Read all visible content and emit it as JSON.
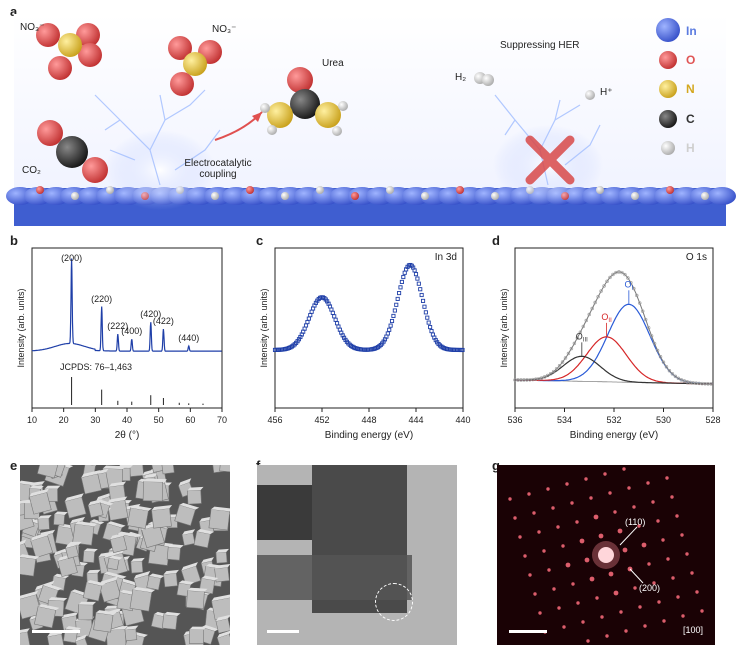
{
  "panel_labels": {
    "a": "a",
    "b": "b",
    "c": "c",
    "d": "d",
    "e": "e",
    "f": "f",
    "g": "g"
  },
  "panel_a": {
    "no3_top_left": "NO₃⁻",
    "no3_top_right": "NO₃⁻",
    "co2": "CO₂",
    "urea": "Urea",
    "coupling_line1": "Electrocatalytic",
    "coupling_line2": "coupling",
    "suppressing": "Suppressing HER",
    "h2": "H₂",
    "hplus": "H⁺",
    "legend": [
      {
        "label": "In",
        "color": "#5b7be0"
      },
      {
        "label": "O",
        "color": "#e05555"
      },
      {
        "label": "N",
        "color": "#e4c23a"
      },
      {
        "label": "C",
        "color": "#333333"
      },
      {
        "label": "H",
        "color": "#dddddd"
      }
    ]
  },
  "chart_data": [
    {
      "panel": "b",
      "type": "line",
      "xlabel": "2θ (°)",
      "ylabel": "Intensity (arb. units)",
      "xlim": [
        10,
        70
      ],
      "xticks": [
        "10",
        "20",
        "30",
        "40",
        "50",
        "60",
        "70"
      ],
      "reference_label": "JCPDS: 76–1,463",
      "peaks": [
        {
          "x": 22.5,
          "label": "(200)",
          "height": 1.0
        },
        {
          "x": 32.0,
          "label": "(220)",
          "height": 0.52
        },
        {
          "x": 37.1,
          "label": "(222)",
          "height": 0.2
        },
        {
          "x": 41.5,
          "label": "(400)",
          "height": 0.14
        },
        {
          "x": 47.5,
          "label": "(420)",
          "height": 0.34
        },
        {
          "x": 51.5,
          "label": "(422)",
          "height": 0.26
        },
        {
          "x": 59.5,
          "label": "(440)",
          "height": 0.06
        }
      ],
      "reference_lines": [
        {
          "x": 22.5,
          "h": 1.0
        },
        {
          "x": 32.0,
          "h": 0.55
        },
        {
          "x": 37.1,
          "h": 0.15
        },
        {
          "x": 41.5,
          "h": 0.12
        },
        {
          "x": 47.5,
          "h": 0.35
        },
        {
          "x": 51.5,
          "h": 0.25
        },
        {
          "x": 56.5,
          "h": 0.08
        },
        {
          "x": 59.5,
          "h": 0.06
        },
        {
          "x": 64,
          "h": 0.05
        }
      ]
    },
    {
      "panel": "c",
      "type": "scatter",
      "title": "In 3d",
      "xlabel": "Binding energy (eV)",
      "ylabel": "Intensity (arb. units)",
      "xlim": [
        456,
        440
      ],
      "xticks": [
        "456",
        "452",
        "448",
        "444",
        "440"
      ],
      "peaks": [
        {
          "x": 452.0,
          "height": 0.62,
          "width": 1.1
        },
        {
          "x": 444.5,
          "height": 1.0,
          "width": 1.05
        }
      ]
    },
    {
      "panel": "d",
      "type": "line",
      "title": "O 1s",
      "xlabel": "Binding energy (eV)",
      "ylabel": "Intensity (arb. units)",
      "xlim": [
        536,
        528
      ],
      "xticks": [
        "536",
        "534",
        "532",
        "530",
        "528"
      ],
      "components": [
        {
          "name": "OI",
          "center": 531.4,
          "height": 0.78,
          "width": 0.85,
          "color": "#2a5bd7"
        },
        {
          "name": "OII",
          "center": 532.3,
          "height": 0.45,
          "width": 0.8,
          "color": "#d62728"
        },
        {
          "name": "OIII",
          "center": 533.3,
          "height": 0.25,
          "width": 0.75,
          "color": "#333333"
        }
      ]
    }
  ],
  "panel_g": {
    "label_110": "(110)",
    "label_200": "(200)",
    "zone_axis": "[100]"
  }
}
